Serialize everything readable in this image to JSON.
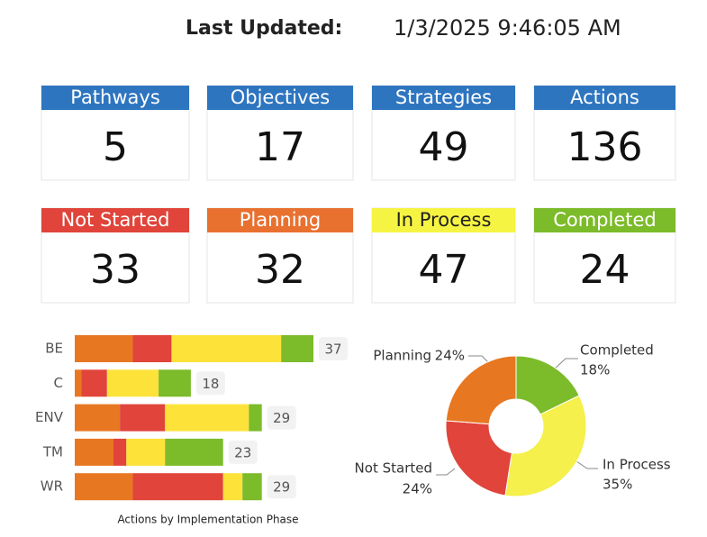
{
  "header": {
    "label": "Last Updated:",
    "value": "1/3/2025 9:46:05 AM"
  },
  "cards": [
    {
      "label": "Pathways",
      "value": 5,
      "color": "#2e75c0",
      "text_color": "#ffffff"
    },
    {
      "label": "Objectives",
      "value": 17,
      "color": "#2e75c0",
      "text_color": "#ffffff"
    },
    {
      "label": "Strategies",
      "value": 49,
      "color": "#2e75c0",
      "text_color": "#ffffff"
    },
    {
      "label": "Actions",
      "value": 136,
      "color": "#2e75c0",
      "text_color": "#ffffff"
    },
    {
      "label": "Not Started",
      "value": 33,
      "color": "#e0443a",
      "text_color": "#ffffff"
    },
    {
      "label": "Planning",
      "value": 32,
      "color": "#e87130",
      "text_color": "#ffffff"
    },
    {
      "label": "In Process",
      "value": 47,
      "color": "#f6f442",
      "text_color": "#222222"
    },
    {
      "label": "Completed",
      "value": 24,
      "color": "#7cbb2a",
      "text_color": "#ffffff"
    }
  ],
  "chart_data": [
    {
      "type": "bar",
      "stacked": true,
      "orientation": "horizontal",
      "xlabel": "Actions by Implementation Phase",
      "categories": [
        "BE",
        "C",
        "ENV",
        "TM",
        "WR"
      ],
      "series": [
        {
          "name": "Planning",
          "color": "#e87722",
          "values": [
            9,
            1,
            7,
            6,
            9
          ]
        },
        {
          "name": "Not Started",
          "color": "#e0443a",
          "values": [
            6,
            4,
            7,
            2,
            14
          ]
        },
        {
          "name": "In Process",
          "color": "#fde23a",
          "values": [
            17,
            8,
            13,
            6,
            3
          ]
        },
        {
          "name": "Completed",
          "color": "#7cbb2a",
          "values": [
            5,
            5,
            2,
            9,
            3
          ]
        }
      ],
      "total_labels": [
        37,
        18,
        29,
        23,
        29
      ]
    },
    {
      "type": "pie",
      "hole": true,
      "categories": [
        "Completed",
        "In Process",
        "Not Started",
        "Planning"
      ],
      "values": [
        18,
        35,
        24,
        24
      ],
      "value_labels": [
        "18%",
        "35%",
        "24%",
        "24%"
      ],
      "colors": [
        "#7cbb2a",
        "#f5f04b",
        "#e0443a",
        "#e87722"
      ]
    }
  ]
}
